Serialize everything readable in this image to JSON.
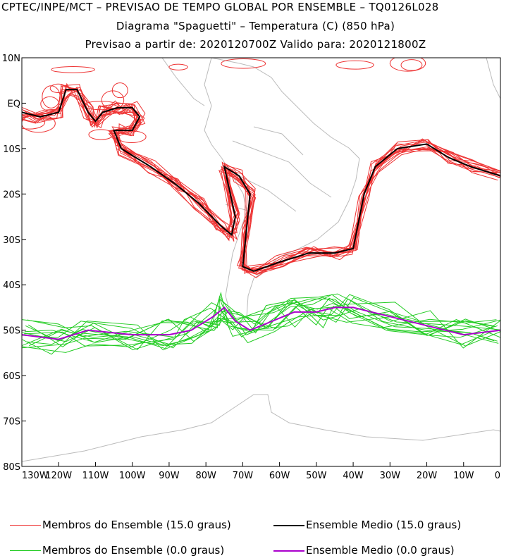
{
  "header": {
    "line1": "CPTEC/INPE/MCT – PREVISAO DE TEMPO GLOBAL POR ENSEMBLE – TQ0126L028",
    "line2": "Diagrama \"Spaguetti\" – Temperatura (C) (850 hPa)",
    "line3": "Previsao a partir de: 2020120700Z   Valido para: 2020121800Z"
  },
  "map": {
    "lon_range": [
      -130,
      0
    ],
    "lat_range": [
      -80,
      10
    ],
    "lat_ticks": [
      "10N",
      "EQ",
      "10S",
      "20S",
      "30S",
      "40S",
      "50S",
      "60S",
      "70S",
      "80S"
    ],
    "lon_ticks": [
      "130W",
      "120W",
      "110W",
      "100W",
      "90W",
      "80W",
      "70W",
      "60W",
      "50W",
      "40W",
      "30W",
      "20W",
      "10W",
      "0"
    ],
    "land_color": "#bbbbbb",
    "contour_15_member_color": "#ee3333",
    "contour_15_mean_color": "#000000",
    "contour_0_member_color": "#22cc22",
    "contour_0_mean_color": "#aa00cc"
  },
  "legend": {
    "item1": "Membros do Ensemble (15.0 graus)",
    "item2": "Ensemble Medio (15.0 graus)",
    "item3": "Membros do Ensemble (0.0 graus)",
    "item4": "Ensemble Medio (0.0 graus)"
  }
}
